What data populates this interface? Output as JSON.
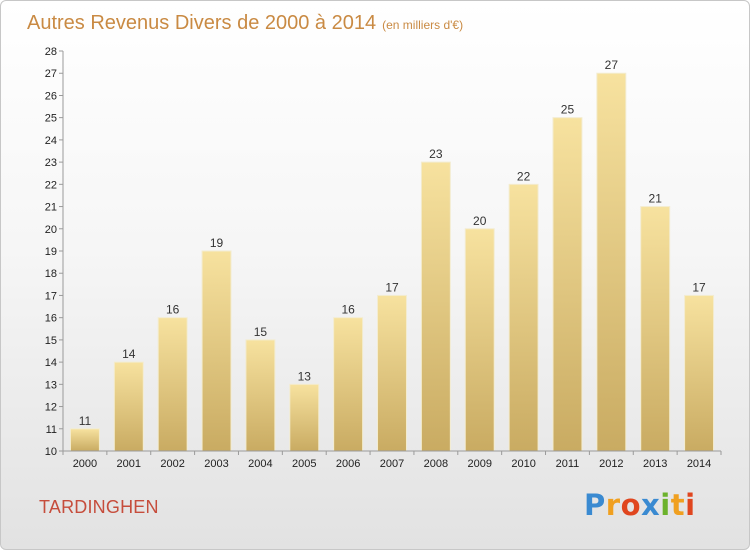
{
  "title": "Autres Revenus Divers de 2000 à 2014",
  "subtitle": "(en milliers d'€)",
  "commune": "TARDINGHEN",
  "logo": {
    "letters": [
      "P",
      "r",
      "o",
      "x",
      "i",
      "t",
      "i"
    ],
    "colors": [
      "#3a8ad1",
      "#f0a020",
      "#e0461f",
      "#3a8ad1",
      "#6cb22c",
      "#f0a020",
      "#e0461f"
    ]
  },
  "colors": {
    "title": "#c98a43",
    "commune": "#c64d3c",
    "bar_top": "#f7e29f",
    "bar_bottom": "#c9ab62"
  },
  "chart_data": {
    "type": "bar",
    "title": "Autres Revenus Divers de 2000 à 2014",
    "subtitle": "(en milliers d'€)",
    "categories": [
      "2000",
      "2001",
      "2002",
      "2003",
      "2004",
      "2005",
      "2006",
      "2007",
      "2008",
      "2009",
      "2010",
      "2011",
      "2012",
      "2013",
      "2014"
    ],
    "values": [
      11,
      14,
      16,
      19,
      15,
      13,
      16,
      17,
      23,
      20,
      22,
      25,
      27,
      21,
      17
    ],
    "ylim": [
      10,
      28
    ],
    "yticks": [
      10,
      11,
      12,
      13,
      14,
      15,
      16,
      17,
      18,
      19,
      20,
      21,
      22,
      23,
      24,
      25,
      26,
      27,
      28
    ],
    "grid": false,
    "data_labels": true
  }
}
